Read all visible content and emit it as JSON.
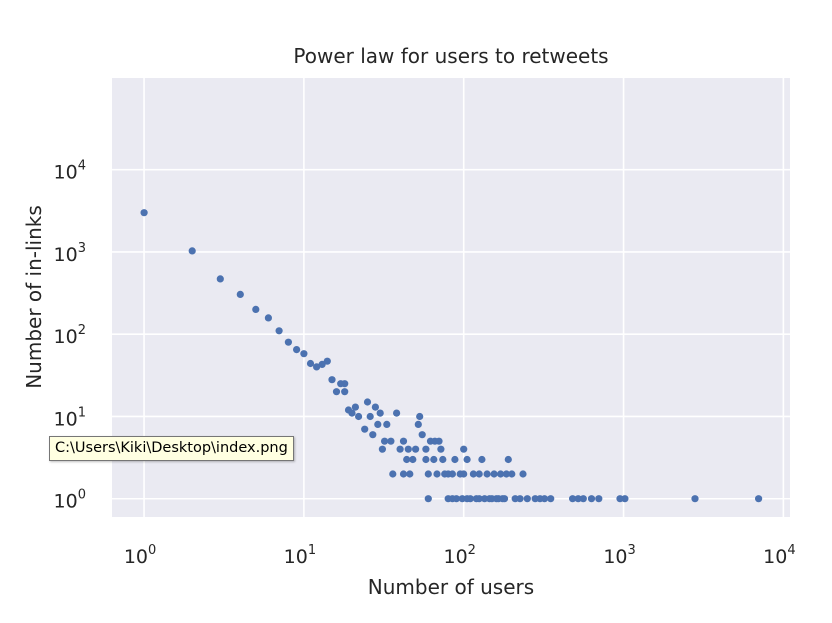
{
  "tooltip": {
    "text": "C:\\Users\\Kiki\\Desktop\\index.png"
  },
  "colors": {
    "background": "#eaeaf2",
    "grid": "#ffffff",
    "marker": "#4c72b0",
    "text": "#262626"
  },
  "chart_data": {
    "type": "scatter",
    "title": "Power law for users to retweets",
    "xlabel": "Number of users",
    "ylabel": "Number of in-links",
    "xscale": "log",
    "yscale": "log",
    "grid": true,
    "xticks": [
      {
        "base": "10",
        "exp": "0",
        "value": 1
      },
      {
        "base": "10",
        "exp": "1",
        "value": 10
      },
      {
        "base": "10",
        "exp": "2",
        "value": 100
      },
      {
        "base": "10",
        "exp": "3",
        "value": 1000
      },
      {
        "base": "10",
        "exp": "4",
        "value": 10000
      }
    ],
    "yticks": [
      {
        "base": "10",
        "exp": "0",
        "value": 1
      },
      {
        "base": "10",
        "exp": "1",
        "value": 10
      },
      {
        "base": "10",
        "exp": "2",
        "value": 100
      },
      {
        "base": "10",
        "exp": "3",
        "value": 1000
      },
      {
        "base": "10",
        "exp": "4",
        "value": 10000
      }
    ],
    "xlim": [
      0.63,
      11000
    ],
    "ylim": [
      0.6,
      130000
    ],
    "points": [
      [
        1,
        3000
      ],
      [
        2,
        1030
      ],
      [
        3,
        470
      ],
      [
        4,
        305
      ],
      [
        5,
        200
      ],
      [
        6,
        158
      ],
      [
        7,
        110
      ],
      [
        8,
        80
      ],
      [
        9,
        65
      ],
      [
        10,
        58
      ],
      [
        11,
        44
      ],
      [
        12,
        40
      ],
      [
        13,
        43
      ],
      [
        14,
        47
      ],
      [
        15,
        28
      ],
      [
        16,
        20
      ],
      [
        17,
        25
      ],
      [
        18,
        25
      ],
      [
        18,
        20
      ],
      [
        19,
        12
      ],
      [
        20,
        11
      ],
      [
        21,
        13
      ],
      [
        22,
        10
      ],
      [
        24,
        7
      ],
      [
        25,
        15
      ],
      [
        26,
        10
      ],
      [
        27,
        6
      ],
      [
        28,
        13
      ],
      [
        29,
        8
      ],
      [
        30,
        11
      ],
      [
        31,
        4
      ],
      [
        32,
        5
      ],
      [
        33,
        8
      ],
      [
        35,
        5
      ],
      [
        36,
        2
      ],
      [
        38,
        11
      ],
      [
        40,
        4
      ],
      [
        42,
        5
      ],
      [
        42,
        2
      ],
      [
        44,
        3
      ],
      [
        45,
        4
      ],
      [
        46,
        2
      ],
      [
        48,
        3
      ],
      [
        50,
        4
      ],
      [
        52,
        8
      ],
      [
        53,
        10
      ],
      [
        55,
        6
      ],
      [
        58,
        4
      ],
      [
        58,
        3
      ],
      [
        60,
        2
      ],
      [
        60,
        1
      ],
      [
        62,
        5
      ],
      [
        65,
        3
      ],
      [
        66,
        5
      ],
      [
        68,
        2
      ],
      [
        70,
        5
      ],
      [
        72,
        4
      ],
      [
        74,
        3
      ],
      [
        76,
        2
      ],
      [
        80,
        2
      ],
      [
        80,
        1
      ],
      [
        85,
        2
      ],
      [
        85,
        1
      ],
      [
        88,
        3
      ],
      [
        90,
        1
      ],
      [
        95,
        2
      ],
      [
        98,
        1
      ],
      [
        100,
        4
      ],
      [
        100,
        2
      ],
      [
        105,
        3
      ],
      [
        105,
        1
      ],
      [
        110,
        1
      ],
      [
        115,
        2
      ],
      [
        120,
        1
      ],
      [
        125,
        2
      ],
      [
        125,
        1
      ],
      [
        130,
        3
      ],
      [
        135,
        1
      ],
      [
        140,
        2
      ],
      [
        145,
        1
      ],
      [
        150,
        1
      ],
      [
        155,
        2
      ],
      [
        160,
        1
      ],
      [
        165,
        1
      ],
      [
        170,
        2
      ],
      [
        175,
        1
      ],
      [
        180,
        1
      ],
      [
        185,
        2
      ],
      [
        190,
        3
      ],
      [
        200,
        2
      ],
      [
        210,
        1
      ],
      [
        225,
        1
      ],
      [
        235,
        2
      ],
      [
        250,
        1
      ],
      [
        280,
        1
      ],
      [
        300,
        1
      ],
      [
        320,
        1
      ],
      [
        350,
        1
      ],
      [
        480,
        1
      ],
      [
        520,
        1
      ],
      [
        560,
        1
      ],
      [
        630,
        1
      ],
      [
        700,
        1
      ],
      [
        950,
        1
      ],
      [
        1020,
        1
      ],
      [
        2800,
        1
      ],
      [
        7000,
        1
      ]
    ]
  }
}
